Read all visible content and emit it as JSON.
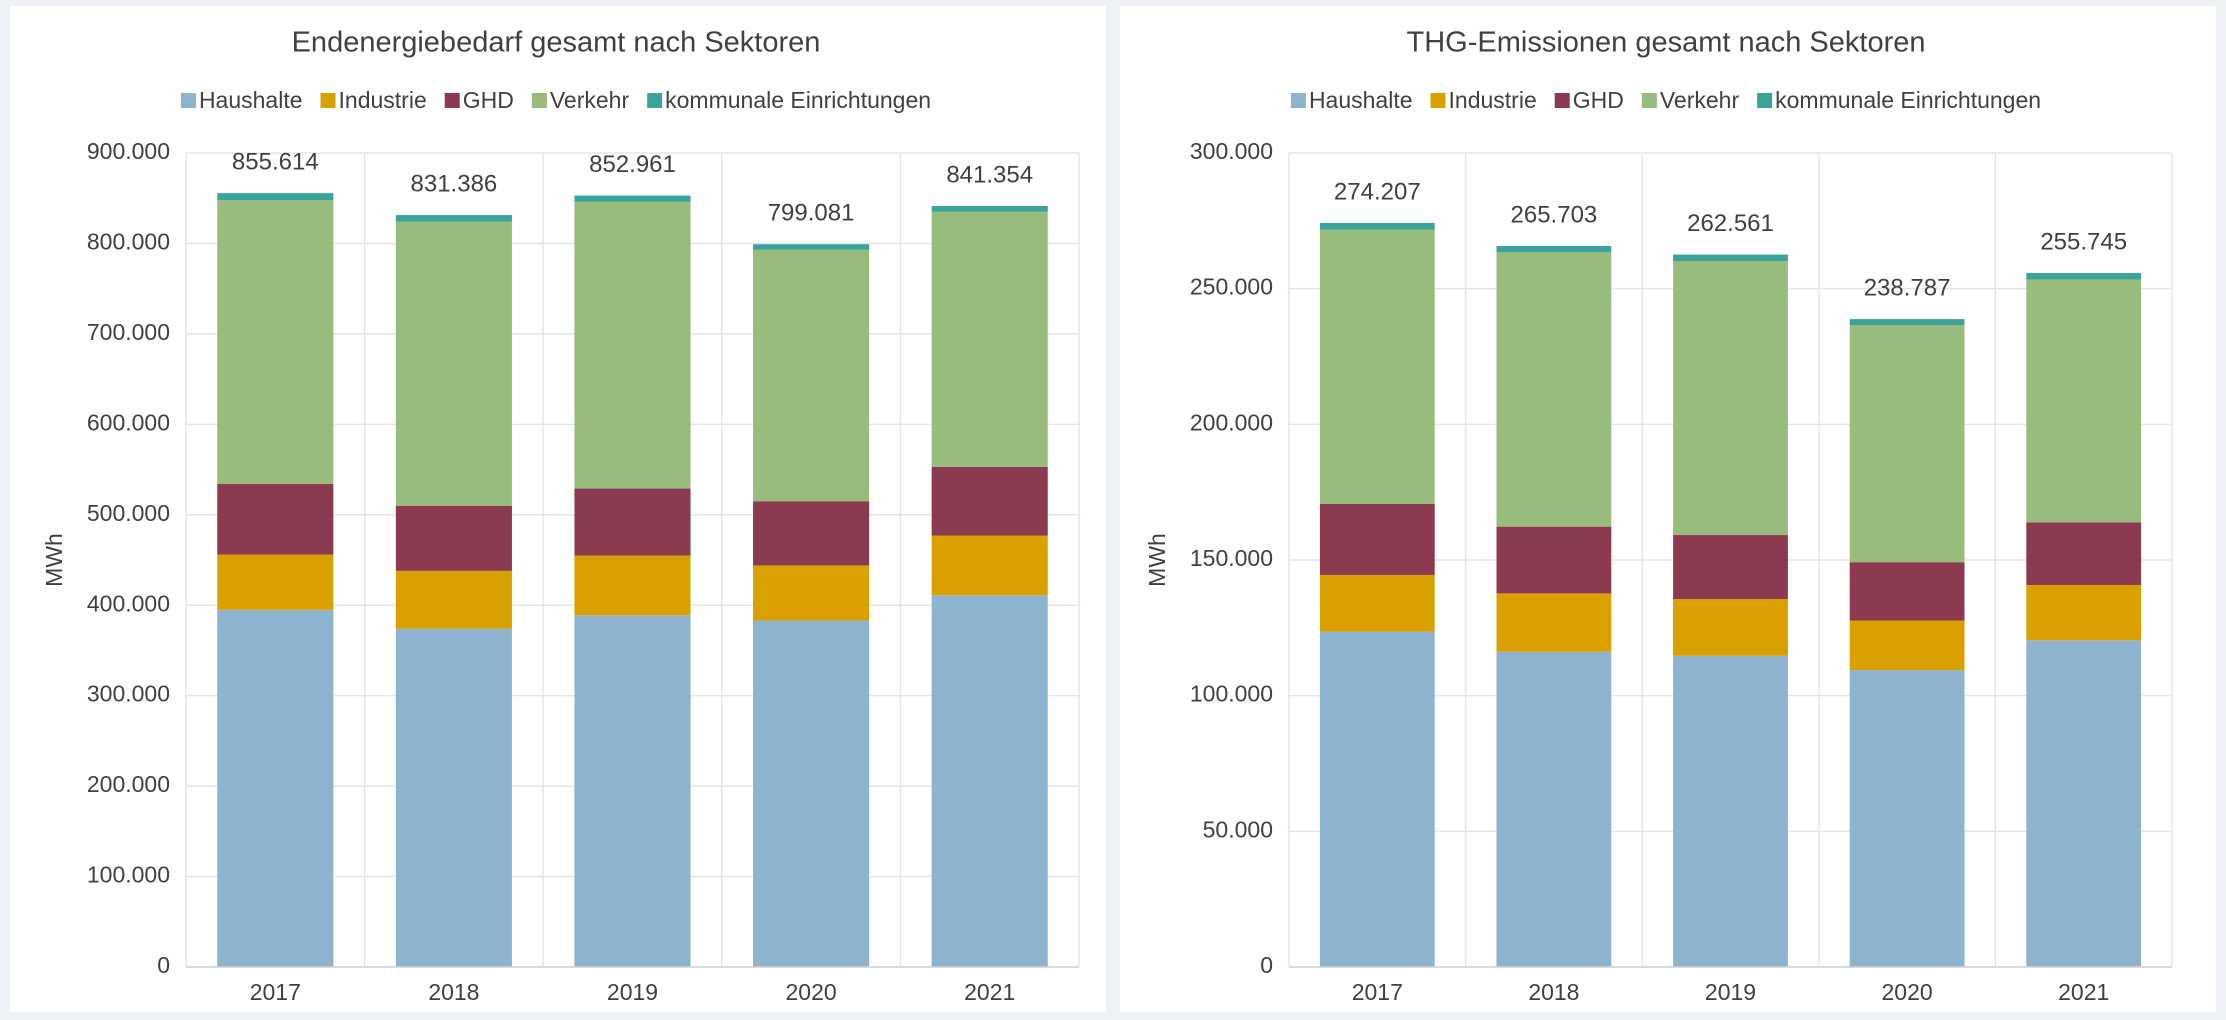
{
  "chart_data": [
    {
      "type": "bar",
      "stacked": true,
      "title": "Endenergiebedarf gesamt nach Sektoren",
      "ylabel": "MWh",
      "categories": [
        "2017",
        "2018",
        "2019",
        "2020",
        "2021"
      ],
      "series": [
        {
          "name": "Haushalte",
          "color": "#8db3cf",
          "values": [
            395000,
            374000,
            389000,
            383000,
            411000
          ]
        },
        {
          "name": "Industrie",
          "color": "#d9a000",
          "values": [
            61000,
            64000,
            66000,
            61000,
            66000
          ]
        },
        {
          "name": "GHD",
          "color": "#8b3a50",
          "values": [
            78000,
            72000,
            74000,
            71000,
            76000
          ]
        },
        {
          "name": "Verkehr",
          "color": "#98bc7c",
          "values": [
            314000,
            314000,
            317000,
            278000,
            282000
          ]
        },
        {
          "name": "kommunale Einrichtungen",
          "color": "#3aa39a",
          "values": [
            7614,
            7386,
            6961,
            6081,
            6354
          ]
        }
      ],
      "totals": {
        "values": [
          855614,
          831386,
          852961,
          799081,
          841354
        ],
        "value_labels": [
          "855.614",
          "831.386",
          "852.961",
          "799.081",
          "841.354"
        ]
      },
      "ylim": [
        0,
        900000
      ],
      "yticks": [
        0,
        {
          "value": 100000,
          "label": "100.000"
        },
        {
          "value": 200000,
          "label": "200.000"
        },
        {
          "value": 300000,
          "label": "300.000"
        },
        {
          "value": 400000,
          "label": "400.000"
        },
        {
          "value": 500000,
          "label": "500.000"
        },
        {
          "value": 600000,
          "label": "600.000"
        },
        {
          "value": 700000,
          "label": "700.000"
        },
        {
          "value": 800000,
          "label": "800.000"
        },
        {
          "value": 900000,
          "label": "900.000"
        }
      ],
      "grid": true,
      "legend": "top"
    },
    {
      "type": "bar",
      "stacked": true,
      "title": "THG-Emissionen gesamt nach Sektoren",
      "ylabel": "MWh",
      "categories": [
        "2017",
        "2018",
        "2019",
        "2020",
        "2021"
      ],
      "series": [
        {
          "name": "Haushalte",
          "color": "#8db3cf",
          "values": [
            123600,
            116200,
            114700,
            109400,
            120400
          ]
        },
        {
          "name": "Industrie",
          "color": "#d9a000",
          "values": [
            20900,
            21500,
            20900,
            18300,
            20400
          ]
        },
        {
          "name": "GHD",
          "color": "#8b3a50",
          "values": [
            26200,
            24600,
            23600,
            21500,
            23100
          ]
        },
        {
          "name": "Verkehr",
          "color": "#98bc7c",
          "values": [
            101000,
            101100,
            101000,
            87400,
            89500
          ]
        },
        {
          "name": "kommunale Einrichtungen",
          "color": "#3aa39a",
          "values": [
            2507,
            2303,
            2361,
            2187,
            2345
          ]
        }
      ],
      "totals": {
        "values": [
          274207,
          265703,
          262561,
          238787,
          255745
        ],
        "value_labels": [
          "274.207",
          "265.703",
          "262.561",
          "238.787",
          "255.745"
        ]
      },
      "ylim": [
        0,
        300000
      ],
      "yticks": [
        0,
        {
          "value": 50000,
          "label": "50.000"
        },
        {
          "value": 100000,
          "label": "100.000"
        },
        {
          "value": 150000,
          "label": "150.000"
        },
        {
          "value": 200000,
          "label": "200.000"
        },
        {
          "value": 250000,
          "label": "250.000"
        },
        {
          "value": 300000,
          "label": "300.000"
        }
      ],
      "grid": true,
      "legend": "top"
    }
  ]
}
